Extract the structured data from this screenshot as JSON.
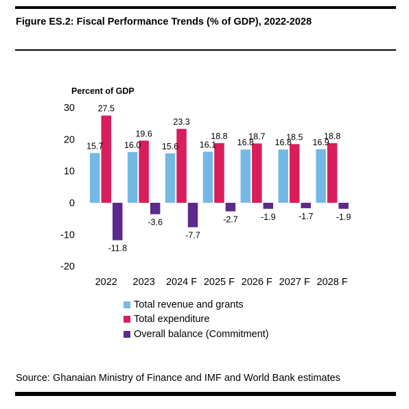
{
  "header": {
    "title": "Figure ES.2: Fiscal Performance Trends (% of GDP), 2022-2028"
  },
  "footer": {
    "source": "Source:  Ghanaian Ministry of Finance and IMF and World Bank estimates"
  },
  "colors": {
    "revenue": "#74B9E6",
    "expenditure": "#D91E5C",
    "balance": "#5B2A8C"
  },
  "chart_data": {
    "type": "bar",
    "ylabel": "Percent of GDP",
    "ylim": [
      -20,
      30
    ],
    "yticks": [
      "30",
      "20",
      "10",
      "0",
      "-10",
      "-20"
    ],
    "categories": [
      "2022",
      "2023",
      "2024 F",
      "2025 F",
      "2026 F",
      "2027 F",
      "2028 F"
    ],
    "grid": false,
    "legend_position": "bottom",
    "series": [
      {
        "name": "Total revenue and grants",
        "color": "#74B9E6",
        "values": [
          15.7,
          16.0,
          15.6,
          16.1,
          16.8,
          16.8,
          16.9
        ],
        "labels": [
          "15.7",
          "16.0",
          "15.6",
          "16.1",
          "16.8",
          "16.8",
          "16.9"
        ]
      },
      {
        "name": "Total expenditure",
        "color": "#D91E5C",
        "values": [
          27.5,
          19.6,
          23.3,
          18.8,
          18.7,
          18.5,
          18.8
        ],
        "labels": [
          "27.5",
          "19.6",
          "23.3",
          "18.8",
          "18.7",
          "18.5",
          "18.8"
        ]
      },
      {
        "name": "Overall balance (Commitment)",
        "color": "#5B2A8C",
        "values": [
          -11.8,
          -3.6,
          -7.7,
          -2.7,
          -1.9,
          -1.7,
          -1.9
        ],
        "labels": [
          "-11.8",
          "-3.6",
          "-7.7",
          "-2.7",
          "-1.9",
          "-1.7",
          "-1.9"
        ]
      }
    ]
  }
}
